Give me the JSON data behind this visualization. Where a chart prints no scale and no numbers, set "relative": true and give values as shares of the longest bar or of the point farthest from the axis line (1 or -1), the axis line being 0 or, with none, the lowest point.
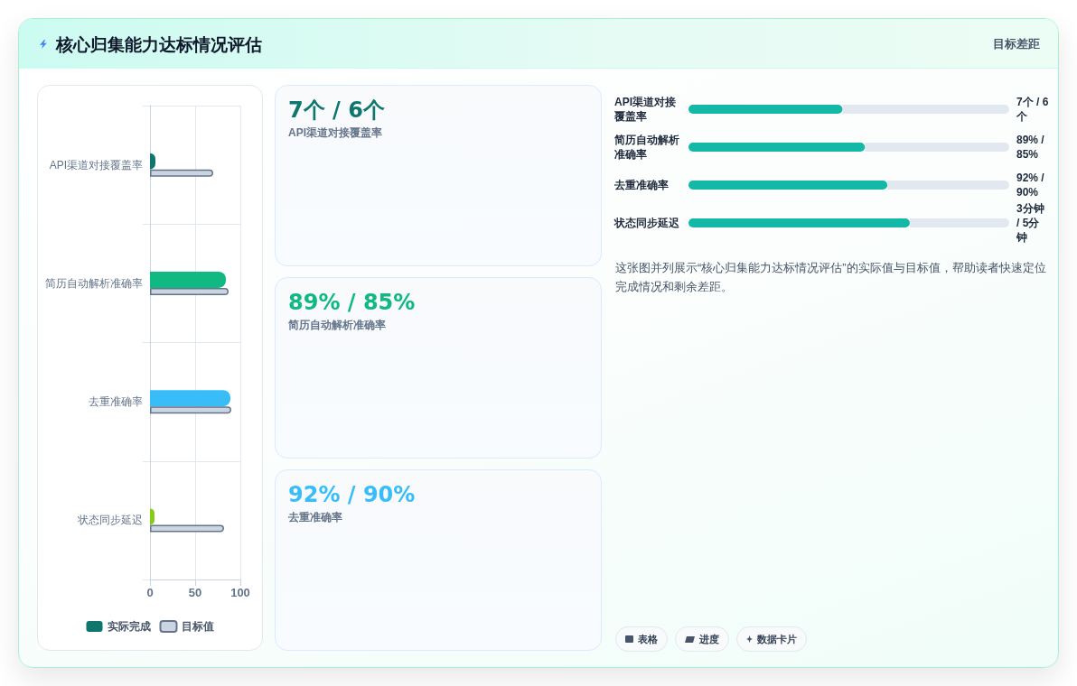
{
  "chart_data": [
    {
      "type": "other",
      "title": "核心归集能力达标情况评估",
      "subtitle": "目标差距"
    },
    {
      "type": "bar",
      "orientation": "horizontal",
      "categories": [
        "API渠道对接覆盖率",
        "简历自动解析准确率",
        "去重准确率",
        "状态同步延迟"
      ],
      "series": [
        {
          "name": "实际完成",
          "color": "#0f766e",
          "colors": [
            "#0f766e",
            "#10b981",
            "#38bdf8",
            "#84cc16"
          ],
          "values": [
            6,
            84,
            89,
            5
          ]
        },
        {
          "name": "目标值",
          "color": "#cbd5e1",
          "values": [
            70,
            87,
            90,
            82
          ]
        }
      ],
      "xlim": [
        0,
        100
      ],
      "xticks": [
        0,
        50,
        100
      ],
      "grid": true,
      "legend": "bottom"
    },
    {
      "type": "other",
      "categories": [
        "API渠道对接覆盖率",
        "简历自动解析准确率",
        "去重准确率"
      ],
      "value_labels": [
        "7个 / 6个",
        "89% / 85%",
        "92% / 90%"
      ]
    },
    {
      "type": "bar",
      "orientation": "horizontal",
      "stacked": true,
      "relative": true,
      "categories": [
        "API渠道对接覆盖率",
        "简历自动解析准确率",
        "去重准确率",
        "状态同步延迟"
      ],
      "series": [
        {
          "color": "#14b8a6",
          "values": [
            0.48,
            0.55,
            0.62,
            0.69
          ]
        },
        {
          "color": "#e2e8f0",
          "values": [
            0.52,
            0.45,
            0.38,
            0.31
          ]
        }
      ],
      "value_labels": [
        "7个 / 6个",
        "89% / 85%",
        "92% / 90%",
        "3分钟 / 5分钟"
      ],
      "annotations": [
        "这张图并列展示“核心归集能力达标情况评估”的实际值与目标值，帮助读者快速定位完成情况和剩余差距。"
      ]
    },
    {
      "type": "other",
      "annotations": [
        "表格",
        "进度",
        "数据卡片"
      ]
    }
  ]
}
